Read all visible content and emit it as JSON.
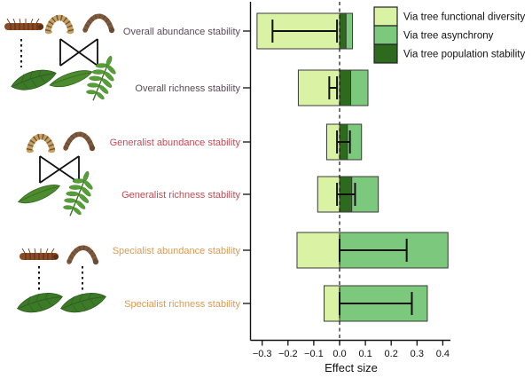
{
  "chart_data": {
    "type": "bar",
    "orientation": "horizontal",
    "title": "",
    "xlabel": "Effect size",
    "xlim": [
      -0.35,
      0.45
    ],
    "xticks": [
      -0.3,
      -0.2,
      -0.1,
      0.0,
      0.1,
      0.2,
      0.3,
      0.4
    ],
    "xtick_labels": [
      "−0.3",
      "−0.2",
      "−0.1",
      "0.0",
      "0.1",
      "0.2",
      "0.3",
      "0.4"
    ],
    "zero_reference_line": 0.0,
    "grid": false,
    "legend_position": "top-right",
    "legend": [
      {
        "key": "functional_diversity",
        "label": "Via tree functional diversity",
        "color": "#d9f2a3"
      },
      {
        "key": "asynchrony",
        "label": "Via tree asynchrony",
        "color": "#7cc87c"
      },
      {
        "key": "population_stability",
        "label": "Via tree population stability",
        "color": "#2d6a1e"
      }
    ],
    "rows": [
      {
        "label": "Overall abundance stability",
        "group": "overall",
        "label_color": "#5a4a52",
        "segments": [
          {
            "pathway": "functional_diversity",
            "from": -0.32,
            "to": 0.0
          },
          {
            "pathway": "population_stability",
            "from": 0.0,
            "to": 0.025
          },
          {
            "pathway": "asynchrony",
            "from": 0.025,
            "to": 0.05
          }
        ],
        "ci": [
          -0.26,
          -0.01
        ]
      },
      {
        "label": "Overall richness stability",
        "group": "overall",
        "label_color": "#5a4a52",
        "segments": [
          {
            "pathway": "functional_diversity",
            "from": -0.16,
            "to": 0.0
          },
          {
            "pathway": "population_stability",
            "from": 0.0,
            "to": 0.043
          },
          {
            "pathway": "asynchrony",
            "from": 0.043,
            "to": 0.11
          }
        ],
        "ci": [
          -0.04,
          -0.01
        ]
      },
      {
        "label": "Generalist abundance stability",
        "group": "generalist",
        "label_color": "#c64a53",
        "segments": [
          {
            "pathway": "functional_diversity",
            "from": -0.05,
            "to": 0.0
          },
          {
            "pathway": "population_stability",
            "from": 0.0,
            "to": 0.03
          },
          {
            "pathway": "asynchrony",
            "from": 0.03,
            "to": 0.085
          }
        ],
        "ci": [
          -0.01,
          0.04
        ]
      },
      {
        "label": "Generalist richness stability",
        "group": "generalist",
        "label_color": "#c64a53",
        "segments": [
          {
            "pathway": "functional_diversity",
            "from": -0.085,
            "to": 0.0
          },
          {
            "pathway": "population_stability",
            "from": 0.0,
            "to": 0.047
          },
          {
            "pathway": "asynchrony",
            "from": 0.047,
            "to": 0.15
          }
        ],
        "ci": [
          -0.01,
          0.06
        ]
      },
      {
        "label": "Specialist abundance stability",
        "group": "specialist",
        "label_color": "#d99a55",
        "segments": [
          {
            "pathway": "functional_diversity",
            "from": -0.165,
            "to": 0.0
          },
          {
            "pathway": "asynchrony",
            "from": 0.0,
            "to": 0.42
          }
        ],
        "ci": [
          0.0,
          0.26
        ]
      },
      {
        "label": "Specialist richness stability",
        "group": "specialist",
        "label_color": "#d99a55",
        "segments": [
          {
            "pathway": "functional_diversity",
            "from": -0.06,
            "to": 0.0
          },
          {
            "pathway": "asynchrony",
            "from": 0.0,
            "to": 0.34
          }
        ],
        "ci": [
          0.0,
          0.28
        ]
      }
    ]
  },
  "illustrations": [
    {
      "name": "overall-food-web",
      "items": [
        "fuzzy-caterpillar-icon",
        "looper-caterpillar-icon",
        "arch-caterpillar-icon",
        "dotted-link-line",
        "crossed-link-lines",
        "broad-leaf-icon",
        "slim-leaf-icon",
        "compound-leaf-icon"
      ]
    },
    {
      "name": "generalist-food-web",
      "items": [
        "looper-caterpillar-icon",
        "arch-caterpillar-icon",
        "crossed-link-lines",
        "slim-leaf-icon",
        "compound-leaf-icon"
      ]
    },
    {
      "name": "specialist-food-web",
      "items": [
        "fuzzy-caterpillar-icon",
        "arch-caterpillar-icon",
        "dotted-link-line",
        "dotted-link-line",
        "broad-leaf-icon",
        "broad-leaf-icon"
      ]
    }
  ]
}
